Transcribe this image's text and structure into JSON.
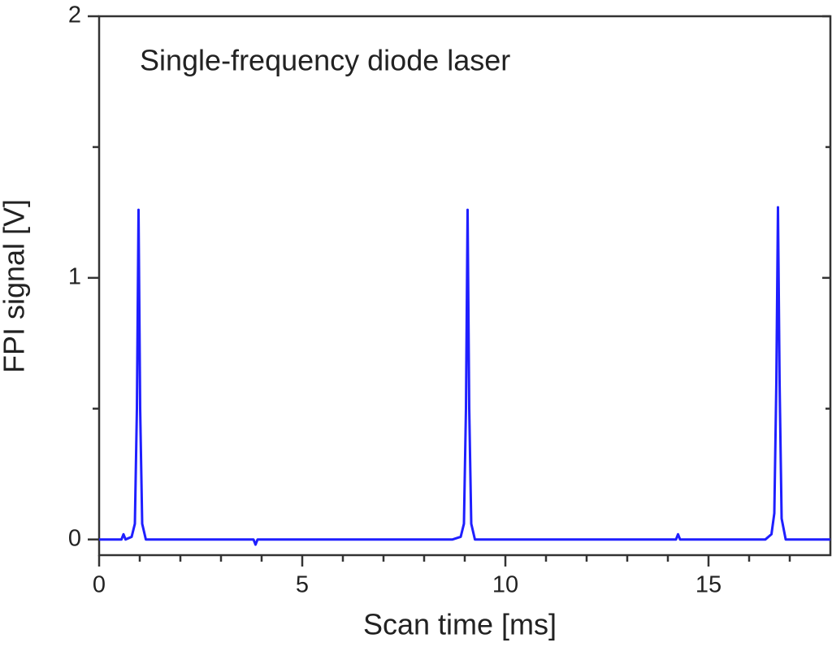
{
  "chart_data": {
    "type": "line",
    "annotation": "Single-frequency diode laser",
    "x_label": "Scan time [ms]",
    "y_label": "FPI signal [V]",
    "xlim": [
      0,
      18
    ],
    "ylim": [
      -0.06,
      2
    ],
    "xticks": [
      0,
      5,
      10,
      15
    ],
    "yticks": [
      0,
      1,
      2
    ],
    "x_minor_ticks": [
      1,
      2,
      3,
      4,
      6,
      7,
      8,
      9,
      11,
      12,
      13,
      14,
      16,
      17
    ],
    "y_minor_ticks": [
      0.5,
      1.5
    ],
    "series": [
      {
        "color": "#1f1fff",
        "x": [
          0,
          0.55,
          0.6,
          0.65,
          0.8,
          0.88,
          0.93,
          0.97,
          1.01,
          1.06,
          1.15,
          3.8,
          3.85,
          3.9,
          8.7,
          8.9,
          8.98,
          9.03,
          9.07,
          9.11,
          9.16,
          9.25,
          14.2,
          14.25,
          14.3,
          16.4,
          16.55,
          16.62,
          16.67,
          16.71,
          16.75,
          16.8,
          16.9,
          18
        ],
        "values": [
          0,
          0,
          0.02,
          0,
          0.01,
          0.06,
          0.5,
          1.26,
          0.5,
          0.06,
          0,
          0,
          -0.02,
          0,
          0,
          0.01,
          0.06,
          0.5,
          1.26,
          0.5,
          0.06,
          0,
          0,
          0.02,
          0,
          0,
          0.02,
          0.1,
          0.6,
          1.27,
          0.6,
          0.08,
          0,
          0
        ]
      }
    ]
  }
}
